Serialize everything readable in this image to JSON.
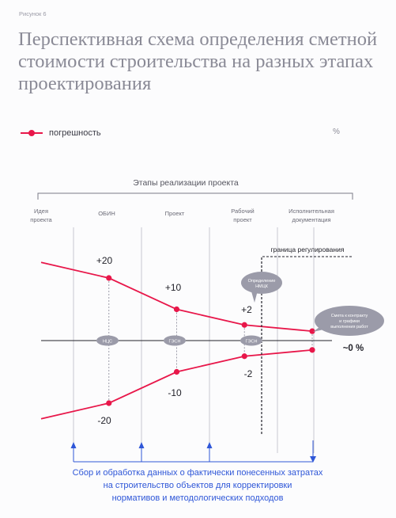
{
  "figure_label": "Рисунок 6",
  "title": "Перспективная схема определения сметной стоимости строительства на разных этапах проектирования",
  "legend": {
    "series_label": "погрешность"
  },
  "unit": "%",
  "colors": {
    "series": "#e8174a",
    "accent": "#2f57d8",
    "bubble": "#9b9ba9",
    "grid": "#c9c9d1"
  },
  "chart_data": {
    "type": "line",
    "title": "Перспективная схема определения сметной стоимости строительства на разных этапах проектирования",
    "header": "Этапы реализации проекта",
    "categories": [
      "Идея проекта",
      "ОБИН",
      "Проект",
      "Рабочий проект",
      "Исполнительная документация"
    ],
    "series": [
      {
        "name": "погрешность",
        "x": [
          0,
          1,
          2,
          3,
          4
        ],
        "values": [
          25,
          20,
          10,
          5,
          3
        ]
      },
      {
        "name": "погрешность",
        "x": [
          0,
          1,
          2,
          3,
          4
        ],
        "values": [
          -25,
          -20,
          -10,
          -5,
          -3
        ]
      }
    ],
    "point_labels": [
      "+20",
      "+10",
      "+2",
      "~0 %",
      "-2",
      "-10",
      "-20"
    ],
    "zero_axis_labels": [
      "НЦС",
      "ГЭСН",
      "ГЭСН"
    ],
    "callouts": [
      "Определение НМЦК",
      "Смета к контракту и графики выполнения работ"
    ],
    "regulation_boundary_label": "граница регулирования",
    "ylim": [
      -30,
      30
    ],
    "grid": true
  },
  "footer": {
    "line1": "Сбор и обработка данных о фактически понесенных затратах",
    "line2": "на строительство объектов для корректировки",
    "line3": "нормативов и методологических подходов"
  }
}
